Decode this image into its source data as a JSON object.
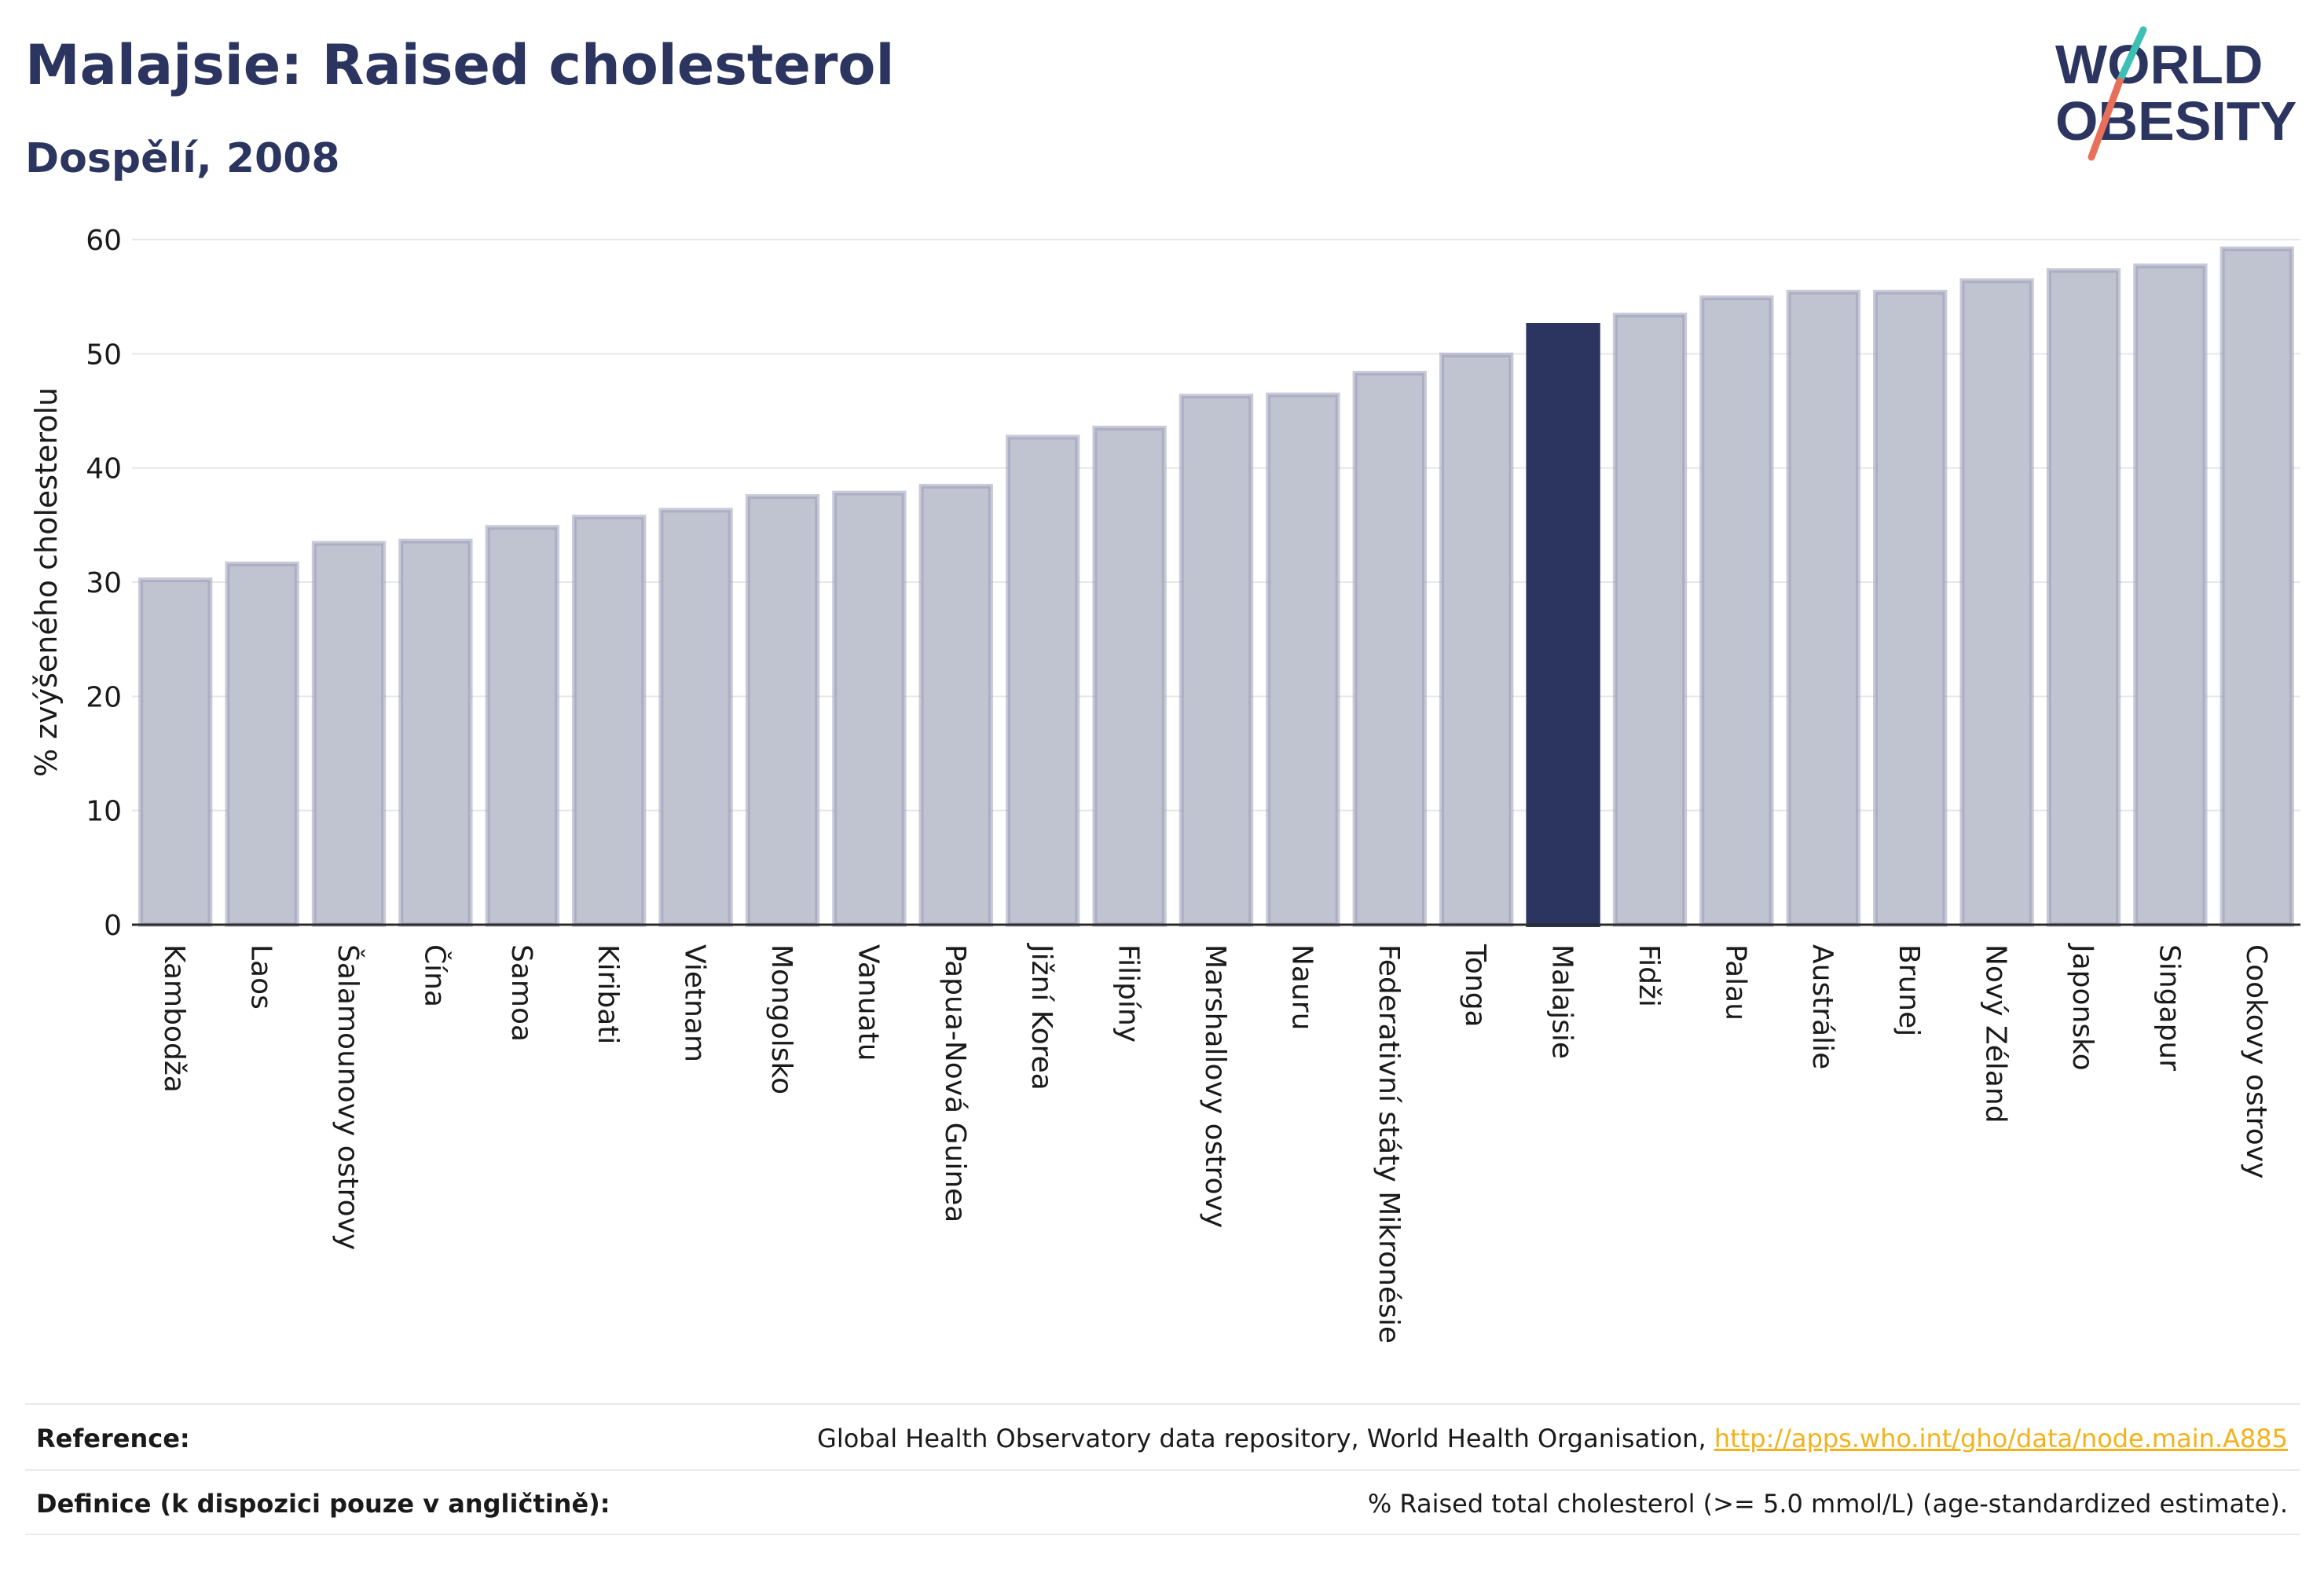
{
  "title": "Malajsie: Raised cholesterol",
  "subtitle": "Dospělí, 2008",
  "logo": {
    "line1": "WORLD",
    "line2": "OBESITY",
    "colors": {
      "text": "#2b3560",
      "slash_top": "#3cbfb4",
      "slash_bottom": "#e8705a"
    }
  },
  "colors": {
    "bar": "#c0c3d0",
    "bar_border": "#9a9fb8",
    "highlight": "#2b3560",
    "grid": "#e6e7ec",
    "axis": "#2b2b2b"
  },
  "chart_data": {
    "type": "bar",
    "title": "Malajsie: Raised cholesterol",
    "subtitle": "Dospělí, 2008",
    "xlabel": "",
    "ylabel": "% zvýšeného cholesterolu",
    "ylim": [
      0,
      60
    ],
    "yticks": [
      0,
      10,
      20,
      30,
      40,
      50,
      60
    ],
    "grid": true,
    "highlight": "Malajsie",
    "categories": [
      "Kambodža",
      "Laos",
      "Šalamounovy ostrovy",
      "Čína",
      "Samoa",
      "Kiribati",
      "Vietnam",
      "Mongolsko",
      "Vanuatu",
      "Papua-Nová Guinea",
      "Jižní Korea",
      "Filipíny",
      "Marshallovy ostrovy",
      "Nauru",
      "Federativní státy Mikronésie",
      "Tonga",
      "Malajsie",
      "Fidži",
      "Palau",
      "Austrálie",
      "Brunej",
      "Nový Zéland",
      "Japonsko",
      "Singapur",
      "Cookovy ostrovy"
    ],
    "values": [
      30.2,
      31.6,
      33.4,
      33.6,
      34.8,
      35.7,
      36.3,
      37.5,
      37.8,
      38.4,
      42.7,
      43.5,
      46.3,
      46.4,
      48.3,
      49.9,
      52.5,
      53.4,
      54.9,
      55.4,
      55.4,
      56.4,
      57.3,
      57.7,
      59.2
    ]
  },
  "footer": {
    "reference_label": "Reference:",
    "reference_text": "Global Health Observatory data repository, World Health Organisation, ",
    "reference_link": "http://apps.who.int/gho/data/node.main.A885",
    "definition_label": "Definice (k dispozici pouze v angličtině):",
    "definition_text": "% Raised total cholesterol (>= 5.0 mmol/L) (age-standardized estimate)."
  }
}
